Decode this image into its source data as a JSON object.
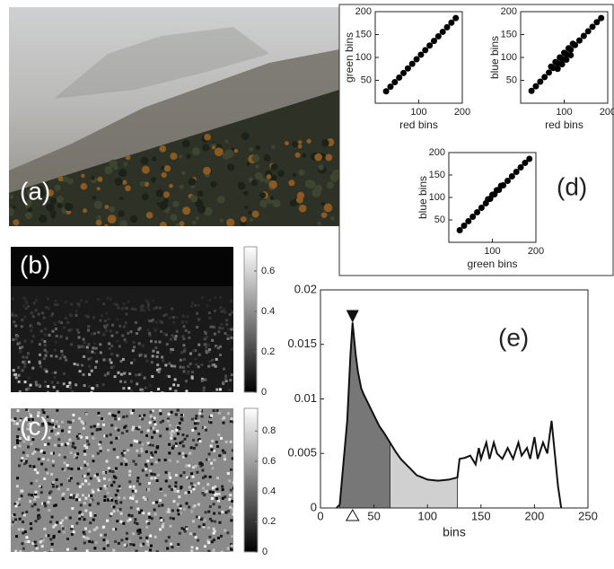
{
  "chart_data": [
    {
      "type": "scatter",
      "xlabel": "red bins",
      "ylabel": "green bins",
      "color": "#000",
      "x": [
        25,
        35,
        45,
        55,
        65,
        75,
        85,
        95,
        105,
        115,
        125,
        135,
        145,
        155,
        165,
        175,
        185
      ],
      "values": [
        26,
        36,
        46,
        56,
        66,
        76,
        86,
        96,
        106,
        116,
        126,
        136,
        146,
        156,
        166,
        176,
        186
      ],
      "xlim": [
        0,
        200
      ],
      "ylim": [
        0,
        200
      ],
      "xticks": [
        100,
        200
      ],
      "yticks": [
        50,
        100,
        150,
        200
      ]
    },
    {
      "type": "scatter",
      "xlabel": "red bins",
      "ylabel": "blue bins",
      "color": "#000",
      "x": [
        25,
        35,
        45,
        55,
        65,
        75,
        85,
        95,
        105,
        115,
        125,
        135,
        145,
        155,
        165,
        175,
        185,
        70,
        80,
        90,
        100,
        110,
        120,
        85,
        95,
        105,
        115
      ],
      "values": [
        27,
        37,
        47,
        57,
        67,
        77,
        87,
        97,
        107,
        117,
        127,
        137,
        147,
        157,
        167,
        177,
        186,
        80,
        90,
        100,
        110,
        120,
        130,
        75,
        85,
        95,
        105
      ],
      "xlim": [
        0,
        200
      ],
      "ylim": [
        0,
        200
      ],
      "xticks": [
        100,
        200
      ],
      "yticks": [
        50,
        100,
        150,
        200
      ]
    },
    {
      "type": "scatter",
      "xlabel": "green bins",
      "ylabel": "blue bins",
      "label": "(d)",
      "color": "#000",
      "x": [
        25,
        35,
        45,
        55,
        65,
        75,
        85,
        95,
        105,
        115,
        125,
        135,
        145,
        155,
        165,
        175,
        185,
        90,
        100,
        110,
        120
      ],
      "values": [
        27,
        37,
        47,
        57,
        67,
        77,
        87,
        97,
        107,
        117,
        127,
        137,
        147,
        157,
        167,
        177,
        186,
        96,
        106,
        116,
        126
      ],
      "xlim": [
        0,
        200
      ],
      "ylim": [
        0,
        200
      ],
      "xticks": [
        100,
        200
      ],
      "yticks": [
        50,
        100,
        150,
        200
      ]
    },
    {
      "type": "colorbar",
      "label": "(b)",
      "ylim": [
        0,
        0.72
      ],
      "yticks": [
        0,
        0.2,
        0.4,
        0.6
      ]
    },
    {
      "type": "colorbar",
      "label": "(c)",
      "ylim": [
        0,
        0.95
      ],
      "yticks": [
        0,
        0.2,
        0.4,
        0.6,
        0.8
      ]
    },
    {
      "type": "line",
      "label": "(e)",
      "xlabel": "bins",
      "color": "#111",
      "x": [
        15,
        18,
        25,
        28,
        30,
        33,
        35,
        38,
        40,
        45,
        50,
        55,
        60,
        65,
        70,
        75,
        80,
        85,
        90,
        95,
        100,
        110,
        120,
        128,
        130,
        135,
        140,
        145,
        148,
        150,
        155,
        158,
        162,
        165,
        170,
        175,
        180,
        185,
        188,
        193,
        196,
        200,
        203,
        208,
        212,
        216,
        218,
        222,
        225
      ],
      "values": [
        0,
        0.0003,
        0.008,
        0.014,
        0.017,
        0.014,
        0.0125,
        0.011,
        0.0105,
        0.0095,
        0.0085,
        0.0075,
        0.0068,
        0.006,
        0.0052,
        0.0045,
        0.004,
        0.0035,
        0.003,
        0.0028,
        0.0026,
        0.0025,
        0.0026,
        0.0028,
        0.0045,
        0.0046,
        0.0048,
        0.004,
        0.0055,
        0.0045,
        0.006,
        0.0045,
        0.006,
        0.005,
        0.0045,
        0.0055,
        0.0045,
        0.006,
        0.0048,
        0.0055,
        0.0045,
        0.0065,
        0.0045,
        0.006,
        0.005,
        0.008,
        0.006,
        0.002,
        0
      ],
      "regions": [
        {
          "from": 18,
          "to": 65,
          "color": "#777"
        },
        {
          "from": 65,
          "to": 128,
          "color": "#d0d0d0"
        }
      ],
      "marker_x": 30,
      "xlim": [
        0,
        250
      ],
      "ylim": [
        0,
        0.02
      ],
      "xticks": [
        0,
        50,
        100,
        150,
        200,
        250
      ],
      "yticks": [
        0,
        0.005,
        0.01,
        0.015,
        0.02
      ]
    }
  ],
  "panels": {
    "a": "(a)"
  }
}
